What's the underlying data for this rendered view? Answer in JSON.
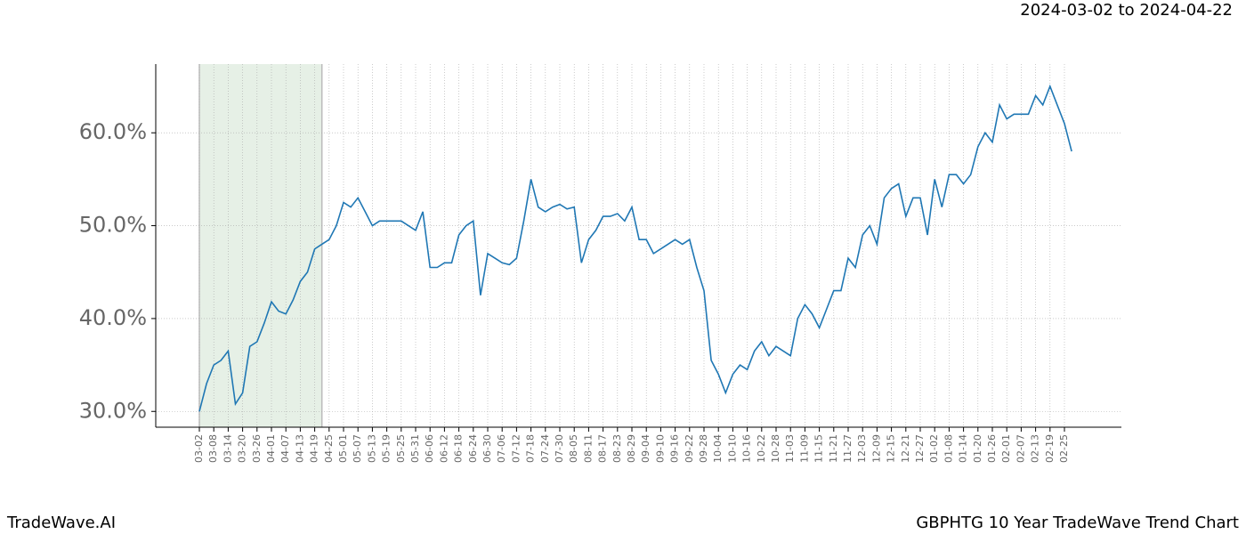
{
  "chart_data": {
    "type": "line",
    "subtitle": "2024-03-02 to 2024-04-22",
    "footer_left": "TradeWave.AI",
    "title": "GBPHTG 10 Year TradeWave Trend Chart",
    "highlight_range": [
      "03-02",
      "04-22"
    ],
    "highlight_color": "#e6f0e6",
    "color": "#1f77b4",
    "grid": true,
    "ylim": [
      28.3,
      67.4
    ],
    "yticks": [
      {
        "value": 30,
        "label": "30.0%"
      },
      {
        "value": 40,
        "label": "40.0%"
      },
      {
        "value": 50,
        "label": "50.0%"
      },
      {
        "value": 60,
        "label": "60.0%"
      }
    ],
    "xticks": [
      "03-02",
      "03-08",
      "03-14",
      "03-20",
      "03-26",
      "04-01",
      "04-07",
      "04-13",
      "04-19",
      "04-25",
      "05-01",
      "05-07",
      "05-13",
      "05-19",
      "05-25",
      "05-31",
      "06-06",
      "06-12",
      "06-18",
      "06-24",
      "06-30",
      "07-06",
      "07-12",
      "07-18",
      "07-24",
      "07-30",
      "08-05",
      "08-11",
      "08-17",
      "08-23",
      "08-29",
      "09-04",
      "09-10",
      "09-16",
      "09-22",
      "09-28",
      "10-04",
      "10-10",
      "10-16",
      "10-22",
      "10-28",
      "11-03",
      "11-09",
      "11-15",
      "11-21",
      "11-27",
      "12-03",
      "12-09",
      "12-15",
      "12-21",
      "12-27",
      "01-02",
      "01-08",
      "01-14",
      "01-20",
      "01-26",
      "02-01",
      "02-07",
      "02-13",
      "02-19",
      "02-25"
    ],
    "x": [
      "03-02",
      "03-05",
      "03-08",
      "03-11",
      "03-14",
      "03-17",
      "03-20",
      "03-23",
      "03-26",
      "03-29",
      "04-01",
      "04-04",
      "04-07",
      "04-10",
      "04-13",
      "04-16",
      "04-19",
      "04-22",
      "04-25",
      "04-28",
      "05-01",
      "05-04",
      "05-07",
      "05-10",
      "05-13",
      "05-16",
      "05-19",
      "05-22",
      "05-25",
      "05-28",
      "05-31",
      "06-03",
      "06-06",
      "06-09",
      "06-12",
      "06-15",
      "06-18",
      "06-21",
      "06-24",
      "06-27",
      "06-30",
      "07-03",
      "07-06",
      "07-09",
      "07-12",
      "07-15",
      "07-18",
      "07-21",
      "07-24",
      "07-27",
      "07-30",
      "08-02",
      "08-05",
      "08-08",
      "08-11",
      "08-14",
      "08-17",
      "08-20",
      "08-23",
      "08-26",
      "08-29",
      "09-01",
      "09-04",
      "09-07",
      "09-10",
      "09-13",
      "09-16",
      "09-19",
      "09-22",
      "09-25",
      "09-28",
      "10-01",
      "10-04",
      "10-07",
      "10-10",
      "10-13",
      "10-16",
      "10-19",
      "10-22",
      "10-25",
      "10-28",
      "10-31",
      "11-03",
      "11-06",
      "11-09",
      "11-12",
      "11-15",
      "11-18",
      "11-21",
      "11-24",
      "11-27",
      "11-30",
      "12-03",
      "12-06",
      "12-09",
      "12-12",
      "12-15",
      "12-18",
      "12-21",
      "12-24",
      "12-27",
      "12-30",
      "01-02",
      "01-05",
      "01-08",
      "01-11",
      "01-14",
      "01-17",
      "01-20",
      "01-23",
      "01-26",
      "01-29",
      "02-01",
      "02-04",
      "02-07",
      "02-10",
      "02-13",
      "02-16",
      "02-19",
      "02-22",
      "02-25",
      "02-28"
    ],
    "values": [
      30,
      33,
      35,
      35.5,
      36.5,
      30.8,
      32,
      37,
      37.5,
      39.5,
      41.8,
      40.8,
      40.5,
      42,
      44,
      45,
      47.5,
      48,
      48.5,
      50,
      52.5,
      52,
      53,
      51.5,
      50,
      50.5,
      50.5,
      50.5,
      50.5,
      50,
      49.5,
      51.5,
      45.5,
      45.5,
      46,
      46,
      49,
      50,
      50.5,
      42.5,
      47,
      46.5,
      46,
      45.8,
      46.5,
      50.5,
      55,
      52,
      51.5,
      52,
      52.3,
      51.8,
      52,
      46,
      48.5,
      49.5,
      51,
      51,
      51.3,
      50.5,
      52,
      48.5,
      48.5,
      47,
      47.5,
      48,
      48.5,
      48,
      48.5,
      45.5,
      43,
      35.5,
      34,
      32,
      34,
      35,
      34.5,
      36.5,
      37.5,
      36,
      37,
      36.5,
      36,
      40,
      41.5,
      40.5,
      39,
      41,
      43,
      43,
      46.5,
      45.5,
      49,
      50,
      48,
      53,
      54,
      54.5,
      51,
      53,
      53,
      49,
      55,
      52,
      55.5,
      55.5,
      54.5,
      55.5,
      58.5,
      60,
      59,
      63,
      61.5,
      62,
      62,
      62,
      64,
      63,
      65,
      63,
      61,
      58
    ]
  }
}
